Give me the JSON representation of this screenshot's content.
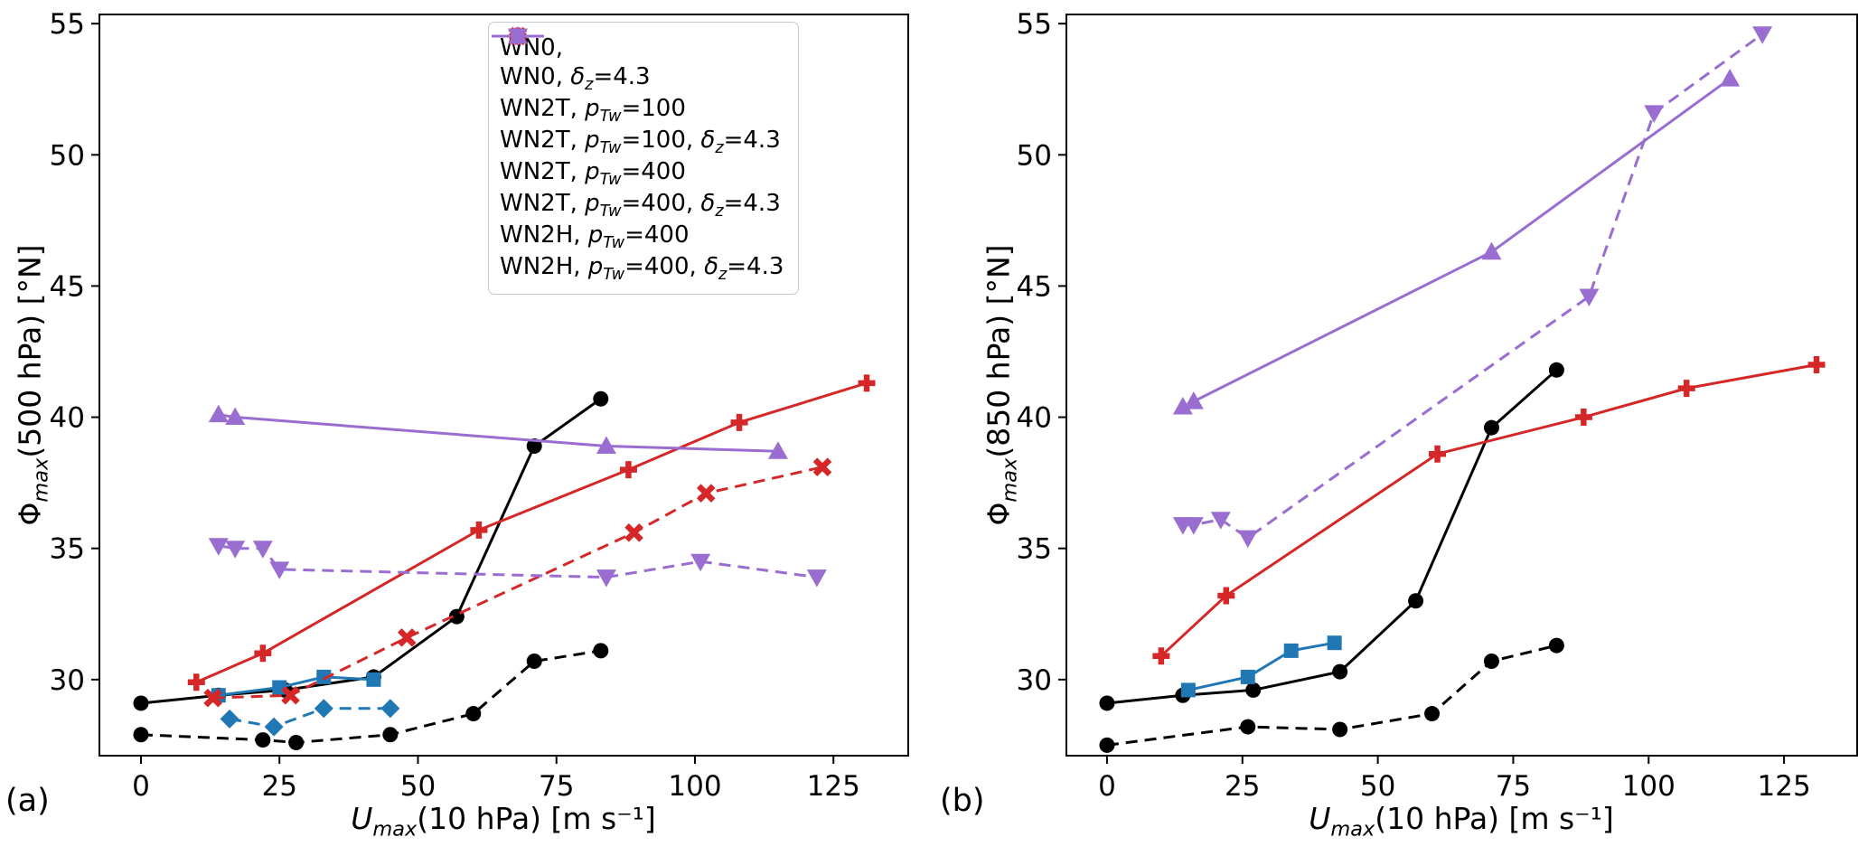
{
  "figure": {
    "background": "#ffffff"
  },
  "styles": {
    "wn0_solid": {
      "color": "#000000",
      "dash": "solid",
      "marker": "circle"
    },
    "wn0_dashed": {
      "color": "#000000",
      "dash": "dashed",
      "marker": "circle"
    },
    "wn2t100_solid": {
      "color": "#1f77b4",
      "dash": "solid",
      "marker": "square"
    },
    "wn2t100_dashed": {
      "color": "#1f77b4",
      "dash": "dashed",
      "marker": "diamond"
    },
    "wn2t400_solid": {
      "color": "#d62728",
      "dash": "solid",
      "marker": "plus"
    },
    "wn2t400_dashed": {
      "color": "#d62728",
      "dash": "dashed",
      "marker": "x"
    },
    "wn2h400_solid": {
      "color": "#9a6dd0",
      "dash": "solid",
      "marker": "triangle-up"
    },
    "wn2h400_dashed": {
      "color": "#9a6dd0",
      "dash": "dashed",
      "marker": "triangle-down"
    }
  },
  "legend": {
    "entries": [
      {
        "style": "wn0_solid",
        "label": "WN0,"
      },
      {
        "style": "wn0_dashed",
        "label": "WN0, ~δ~_z_=4.3"
      },
      {
        "style": "wn2t100_solid",
        "label": "WN2T, ~p~_Tw_=100"
      },
      {
        "style": "wn2t100_dashed",
        "label": "WN2T, ~p~_Tw_=100, ~δ~_z_=4.3"
      },
      {
        "style": "wn2t400_solid",
        "label": "WN2T, ~p~_Tw_=400"
      },
      {
        "style": "wn2t400_dashed",
        "label": "WN2T, ~p~_Tw_=400, ~δ~_z_=4.3"
      },
      {
        "style": "wn2h400_solid",
        "label": "WN2H, ~p~_Tw_=400"
      },
      {
        "style": "wn2h400_dashed",
        "label": "WN2H, ~p~_Tw_=400, ~δ~_z_=4.3"
      }
    ]
  },
  "chart_data": [
    {
      "type": "line",
      "tag": "(a)",
      "xlabel": "~U~_max_(10 hPa) [m s⁻¹]",
      "ylabel": "Φ_max_(500 hPa) [°N]",
      "xlim": [
        -7.5,
        138.5
      ],
      "ylim": [
        27.1,
        55.35
      ],
      "xticks": [
        0,
        25,
        50,
        75,
        100,
        125
      ],
      "yticks": [
        30,
        35,
        40,
        45,
        50,
        55
      ],
      "series": [
        {
          "style": "wn0_solid",
          "name": "WN0",
          "points": [
            [
              0,
              29.1
            ],
            [
              14,
              29.4
            ],
            [
              26,
              29.6
            ],
            [
              42,
              30.1
            ],
            [
              57,
              32.4
            ],
            [
              71,
              38.9
            ],
            [
              83,
              40.7
            ]
          ]
        },
        {
          "style": "wn0_dashed",
          "name": "WN0, δz=4.3",
          "points": [
            [
              0,
              27.9
            ],
            [
              22,
              27.7
            ],
            [
              28,
              27.6
            ],
            [
              45,
              27.9
            ],
            [
              60,
              28.7
            ],
            [
              71,
              30.7
            ],
            [
              83,
              31.1
            ]
          ]
        },
        {
          "style": "wn2t100_solid",
          "name": "WN2T, pTw=100",
          "points": [
            [
              14,
              29.4
            ],
            [
              25,
              29.7
            ],
            [
              33,
              30.1
            ],
            [
              42,
              30.0
            ]
          ]
        },
        {
          "style": "wn2t100_dashed",
          "name": "WN2T, pTw=100, δz=4.3",
          "points": [
            [
              16,
              28.5
            ],
            [
              24,
              28.2
            ],
            [
              33,
              28.9
            ],
            [
              45,
              28.9
            ]
          ]
        },
        {
          "style": "wn2t400_solid",
          "name": "WN2T, pTw=400",
          "points": [
            [
              10,
              29.9
            ],
            [
              22,
              31.0
            ],
            [
              61,
              35.7
            ],
            [
              88,
              38.0
            ],
            [
              108,
              39.8
            ],
            [
              131,
              41.3
            ]
          ]
        },
        {
          "style": "wn2t400_dashed",
          "name": "WN2T, pTw=400, δz=4.3",
          "points": [
            [
              13,
              29.3
            ],
            [
              27,
              29.4
            ],
            [
              48,
              31.6
            ],
            [
              89,
              35.6
            ],
            [
              102,
              37.1
            ],
            [
              123,
              38.1
            ]
          ]
        },
        {
          "style": "wn2h400_solid",
          "name": "WN2H, pTw=400",
          "points": [
            [
              14,
              40.1
            ],
            [
              17,
              40.0
            ],
            [
              84,
              38.9
            ],
            [
              115,
              38.7
            ]
          ]
        },
        {
          "style": "wn2h400_dashed",
          "name": "WN2H, pTw=400, δz=4.3",
          "points": [
            [
              14,
              35.1
            ],
            [
              17,
              35.0
            ],
            [
              22,
              35.0
            ],
            [
              25,
              34.2
            ],
            [
              84,
              33.9
            ],
            [
              101,
              34.5
            ],
            [
              122,
              33.9
            ]
          ]
        }
      ]
    },
    {
      "type": "line",
      "tag": "(b)",
      "xlabel": "~U~_max_(10 hPa) [m s⁻¹]",
      "ylabel": "Φ_max_(850 hPa) [°N]",
      "xlim": [
        -7.5,
        138.5
      ],
      "ylim": [
        27.1,
        55.35
      ],
      "xticks": [
        0,
        25,
        50,
        75,
        100,
        125
      ],
      "yticks": [
        30,
        35,
        40,
        45,
        50,
        55
      ],
      "series": [
        {
          "style": "wn0_solid",
          "name": "WN0",
          "points": [
            [
              0,
              29.1
            ],
            [
              14,
              29.4
            ],
            [
              27,
              29.6
            ],
            [
              43,
              30.3
            ],
            [
              57,
              33.0
            ],
            [
              71,
              39.6
            ],
            [
              83,
              41.8
            ]
          ]
        },
        {
          "style": "wn0_dashed",
          "name": "WN0, δz=4.3",
          "points": [
            [
              0,
              27.5
            ],
            [
              26,
              28.2
            ],
            [
              43,
              28.1
            ],
            [
              60,
              28.7
            ],
            [
              71,
              30.7
            ],
            [
              83,
              31.3
            ]
          ]
        },
        {
          "style": "wn2t100_solid",
          "name": "WN2T, pTw=100",
          "points": [
            [
              15,
              29.6
            ],
            [
              26,
              30.1
            ],
            [
              34,
              31.1
            ],
            [
              42,
              31.4
            ]
          ]
        },
        {
          "style": "wn2t400_solid",
          "name": "WN2T, pTw=400",
          "points": [
            [
              10,
              30.9
            ],
            [
              22,
              33.2
            ],
            [
              61,
              38.6
            ],
            [
              88,
              40.0
            ],
            [
              107,
              41.1
            ],
            [
              131,
              42.0
            ]
          ]
        },
        {
          "style": "wn2h400_solid",
          "name": "WN2H, pTw=400",
          "points": [
            [
              14,
              40.4
            ],
            [
              16,
              40.6
            ],
            [
              71,
              46.3
            ],
            [
              115,
              52.9
            ]
          ]
        },
        {
          "style": "wn2h400_dashed",
          "name": "WN2H, pTw=400, δz=4.3",
          "points": [
            [
              14,
              35.9
            ],
            [
              16,
              35.9
            ],
            [
              21,
              36.1
            ],
            [
              26,
              35.4
            ],
            [
              89,
              44.6
            ],
            [
              101,
              51.6
            ],
            [
              121,
              54.6
            ]
          ]
        }
      ]
    }
  ]
}
